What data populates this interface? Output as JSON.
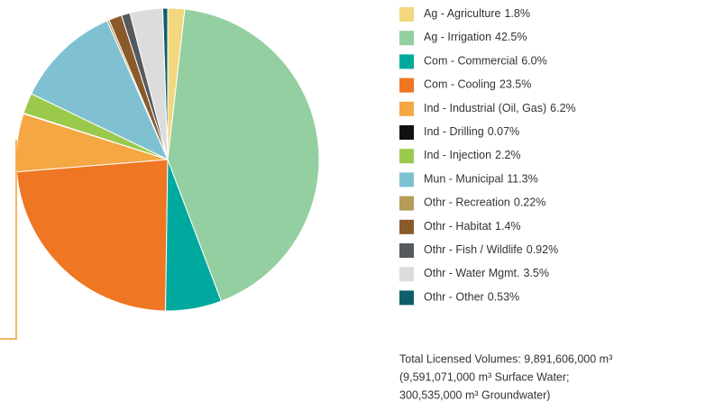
{
  "chart_data": {
    "type": "pie",
    "categories": [
      "Ag - Agriculture",
      "Ag - Irrigation",
      "Com - Commercial",
      "Com - Cooling",
      "Ind - Industrial (Oil, Gas)",
      "Ind - Drilling",
      "Ind - Injection",
      "Mun - Municipal",
      "Othr - Recreation",
      "Othr - Habitat",
      "Othr - Fish / Wildlife",
      "Othr - Water Mgmt.",
      "Othr - Other"
    ],
    "values": [
      1.8,
      42.5,
      6.0,
      23.5,
      6.2,
      0.07,
      2.2,
      11.3,
      0.22,
      1.4,
      0.92,
      3.5,
      0.53
    ],
    "value_labels": [
      "1.8%",
      "42.5%",
      "6.0%",
      "23.5%",
      "6.2%",
      "0.07%",
      "2.2%",
      "11.3%",
      "0.22%",
      "1.4%",
      "0.92%",
      "3.5%",
      "0.53%"
    ],
    "colors": [
      "#f2d77e",
      "#93cfa0",
      "#00a99d",
      "#ef7622",
      "#f4a742",
      "#111111",
      "#9bc94b",
      "#7fc1d3",
      "#b59a5a",
      "#8b5a2b",
      "#555a5e",
      "#dcdcdc",
      "#0d5f6b"
    ],
    "notes": [
      "Total Licensed Volumes: 9,891,606,000 m³",
      "(9,591,071,000 m³ Surface Water;",
      "300,535,000 m³ Groundwater)"
    ]
  }
}
